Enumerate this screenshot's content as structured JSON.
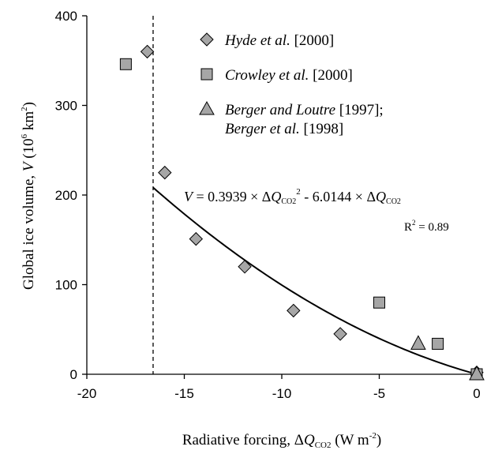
{
  "chart_data": {
    "type": "scatter",
    "xlabel": {
      "prefix": "Radiative forcing, Δ",
      "var": "Q",
      "sub": "CO2",
      "unit_pre": " (W m",
      "unit_sup": "-2",
      "unit_post": ")"
    },
    "ylabel": {
      "prefix": "Global ice volume, ",
      "var": "V",
      "unit_pre": " (10",
      "unit_sup1": "6",
      "unit_mid": " km",
      "unit_sup2": "2",
      "unit_post": ")"
    },
    "xlim": [
      -20,
      0
    ],
    "ylim": [
      0,
      400
    ],
    "x_ticks": [
      -20,
      -15,
      -10,
      -5,
      0
    ],
    "y_ticks": [
      0,
      100,
      200,
      300,
      400
    ],
    "x_tick_labels": [
      "-20",
      "-15",
      "-10",
      "-5",
      "0"
    ],
    "y_tick_labels": [
      "0",
      "100",
      "200",
      "300",
      "400"
    ],
    "grid": false,
    "legend_position": "top-right",
    "series": [
      {
        "name": "Hyde et al. [2000]",
        "legend": {
          "italic": "Hyde et al.",
          "normal": " [2000]"
        },
        "marker": "diamond",
        "color": "#a6a6a6",
        "x": [
          -16.9,
          -16.0,
          -14.4,
          -11.9,
          -9.4,
          -7.0,
          0.0
        ],
        "y": [
          360,
          225,
          151,
          120,
          71,
          45,
          2
        ]
      },
      {
        "name": "Crowley et al. [2000]",
        "legend": {
          "italic": "Crowley et al.",
          "normal": " [2000]"
        },
        "marker": "square",
        "color": "#a6a6a6",
        "x": [
          -18.0,
          -5.0,
          -2.0,
          0.0
        ],
        "y": [
          346,
          80,
          34,
          0
        ]
      },
      {
        "name": "Berger and Loutre [1997]; Berger et al. [1998]",
        "legend": {
          "line1_italic": "Berger and Loutre",
          "line1_normal": " [1997];",
          "line2_italic": "Berger et al.",
          "line2_normal": " [1998]"
        },
        "marker": "triangle",
        "color": "#a6a6a6",
        "x": [
          -3.0,
          0.0
        ],
        "y": [
          34,
          0
        ]
      }
    ],
    "fit_curve": {
      "a": 0.3939,
      "b": -6.0144,
      "x_start": -16.6,
      "x_end": 0,
      "color": "#000000"
    },
    "vertical_line": {
      "x": -16.6,
      "style": "dashed"
    },
    "annotations": {
      "equation": {
        "lhs": "V",
        "eq": " = 0.3939 × Δ",
        "q1": "Q",
        "sub1": "CO2",
        "sup1": "2",
        "mid": " - 6.0144 × Δ",
        "q2": "Q",
        "sub2": "CO2"
      },
      "r2": {
        "base": "R",
        "sup": "2",
        "rest": " = 0.89"
      }
    }
  }
}
